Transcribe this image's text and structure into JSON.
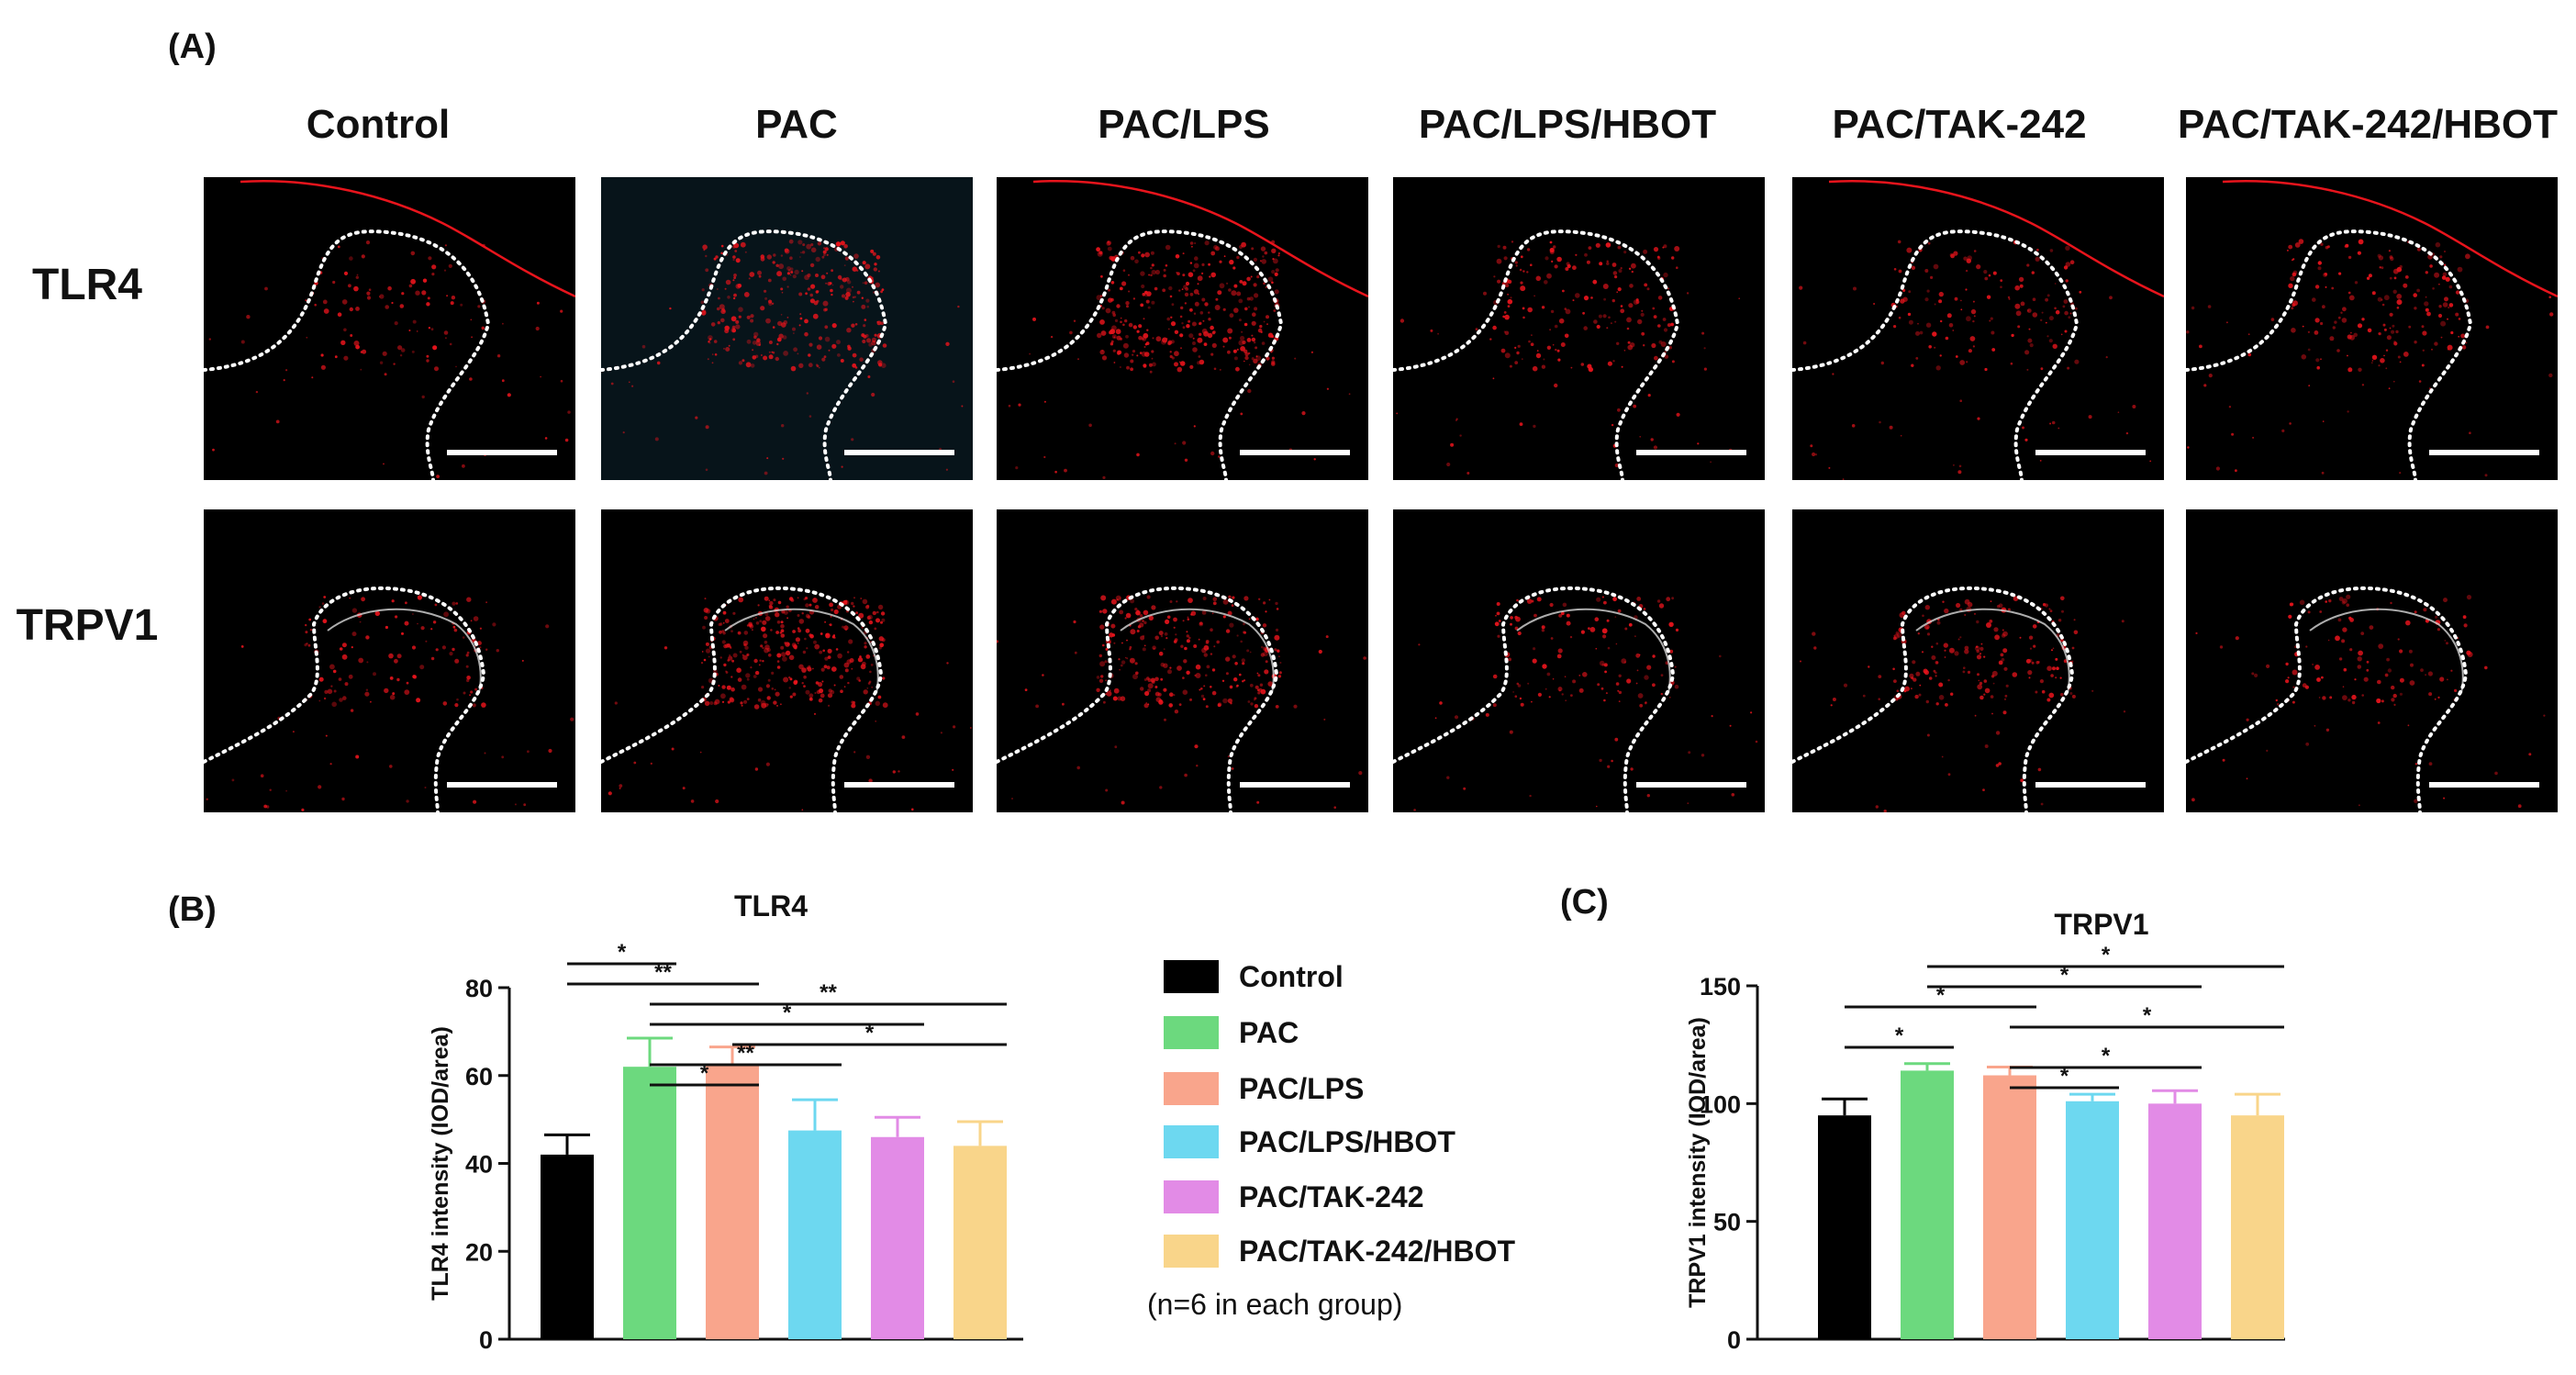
{
  "panel_a": {
    "label": "(A)",
    "columns": [
      "Control",
      "PAC",
      "PAC/LPS",
      "PAC/LPS/HBOT",
      "PAC/TAK-242",
      "PAC/TAK-242/HBOT"
    ],
    "rows": [
      "TLR4",
      "TRPV1"
    ],
    "stain_color": "#e8141c"
  },
  "legend": {
    "items": [
      {
        "name": "Control",
        "color": "#000000"
      },
      {
        "name": "PAC",
        "color": "#6cd97e"
      },
      {
        "name": "PAC/LPS",
        "color": "#f9a58c"
      },
      {
        "name": "PAC/LPS/HBOT",
        "color": "#6dd8f0"
      },
      {
        "name": "PAC/TAK-242",
        "color": "#e28be6"
      },
      {
        "name": "PAC/TAK-242/HBOT",
        "color": "#f9d58a"
      }
    ],
    "note": "(n=6 in each group)"
  },
  "chart_data": [
    {
      "panel_label": "(B)",
      "type": "bar",
      "title": "TLR4",
      "ylabel": "TLR4 intensity (IOD/area)",
      "categories": [
        "Control",
        "PAC",
        "PAC/LPS",
        "PAC/LPS/HBOT",
        "PAC/TAK-242",
        "PAC/TAK-242/HBOT"
      ],
      "values": [
        42,
        62,
        62.5,
        47.5,
        46,
        44
      ],
      "errors": [
        4.5,
        6.5,
        4,
        7,
        4.5,
        5.5
      ],
      "ylim": [
        0,
        80
      ],
      "yticks": [
        0,
        20,
        40,
        60,
        80
      ],
      "significance": [
        {
          "from": 0,
          "to": 1,
          "label": "*"
        },
        {
          "from": 0,
          "to": 2,
          "label": "**"
        },
        {
          "from": 1,
          "to": 5,
          "label": "**"
        },
        {
          "from": 1,
          "to": 4,
          "label": "*"
        },
        {
          "from": 2,
          "to": 5,
          "label": "*"
        },
        {
          "from": 1,
          "to": 3,
          "label": "**"
        },
        {
          "from": 1,
          "to": 2,
          "label": "*"
        }
      ]
    },
    {
      "panel_label": "(C)",
      "type": "bar",
      "title": "TRPV1",
      "ylabel": "TRPV1 intensity (IOD/area)",
      "categories": [
        "Control",
        "PAC",
        "PAC/LPS",
        "PAC/LPS/HBOT",
        "PAC/TAK-242",
        "PAC/TAK-242/HBOT"
      ],
      "values": [
        95,
        114,
        112,
        101,
        100,
        95
      ],
      "errors": [
        7,
        3,
        3.5,
        3,
        5.5,
        9
      ],
      "ylim": [
        0,
        150
      ],
      "yticks": [
        0,
        50,
        100,
        150
      ],
      "significance": [
        {
          "from": 1,
          "to": 5,
          "label": "*"
        },
        {
          "from": 1,
          "to": 4,
          "label": "*"
        },
        {
          "from": 0,
          "to": 2,
          "label": "*"
        },
        {
          "from": 2,
          "to": 5,
          "label": "*"
        },
        {
          "from": 0,
          "to": 1,
          "label": "*"
        },
        {
          "from": 2,
          "to": 4,
          "label": "*"
        },
        {
          "from": 2,
          "to": 3,
          "label": "*"
        }
      ]
    }
  ]
}
